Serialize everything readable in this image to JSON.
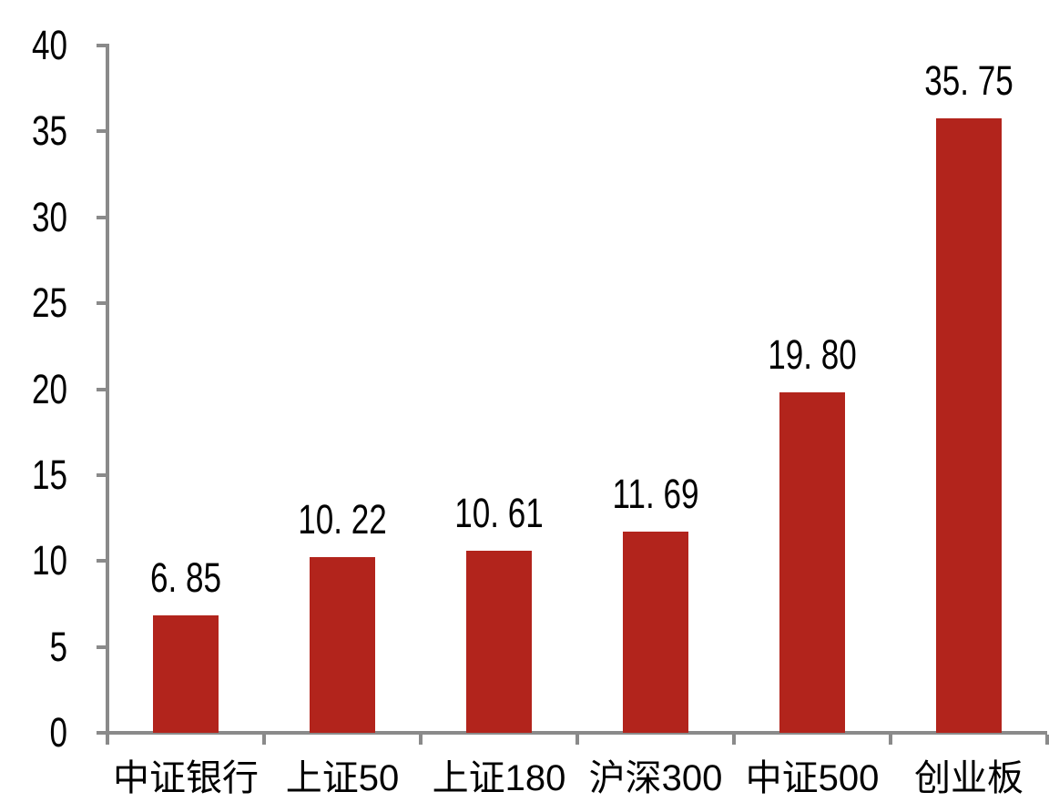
{
  "page": {
    "background_color": "#ffffff"
  },
  "chart_data": {
    "type": "bar",
    "title": "",
    "xlabel": "",
    "ylabel": "",
    "categories": [
      "中证银行",
      "上证50",
      "上证180",
      "沪深300",
      "中证500",
      "创业板"
    ],
    "values": [
      6.85,
      10.22,
      10.61,
      11.69,
      19.8,
      35.75
    ],
    "value_labels": [
      "6. 85",
      "10. 22",
      "10. 61",
      "11. 69",
      "19. 80",
      "35. 75"
    ],
    "y_ticks": [
      0,
      5,
      10,
      15,
      20,
      25,
      30,
      35,
      40
    ],
    "ylim": [
      0,
      40
    ],
    "grid": false,
    "legend": "none",
    "bar_color": "#b2241c",
    "axis_color": "#8a8a8a",
    "text_color": "#000000"
  }
}
